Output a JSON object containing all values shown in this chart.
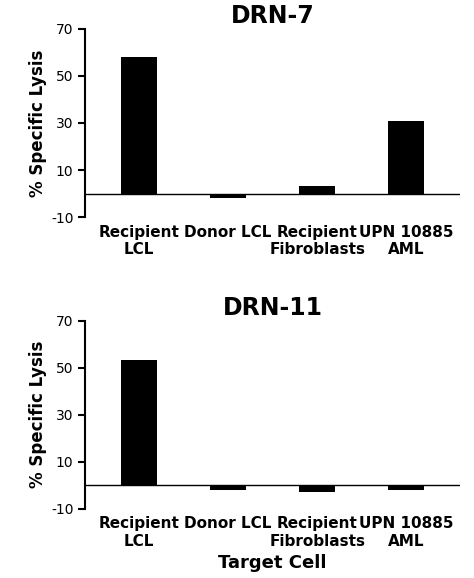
{
  "panels": [
    {
      "title": "DRN-7",
      "categories": [
        "Recipient\nLCL",
        "Donor LCL",
        "Recipient\nFibroblasts",
        "UPN 10885\nAML"
      ],
      "values": [
        58,
        -2,
        3,
        31
      ],
      "ylim": [
        -10,
        70
      ],
      "yticks": [
        -10,
        10,
        30,
        50,
        70
      ],
      "ytick_labels": [
        "-10",
        "10",
        "30",
        "50",
        "70"
      ]
    },
    {
      "title": "DRN-11",
      "categories": [
        "Recipient\nLCL",
        "Donor LCL",
        "Recipient\nFibroblasts",
        "UPN 10885\nAML"
      ],
      "values": [
        53,
        -2,
        -3,
        -2
      ],
      "ylim": [
        -10,
        70
      ],
      "yticks": [
        -10,
        10,
        30,
        50,
        70
      ],
      "ytick_labels": [
        "-10",
        "10",
        "30",
        "50",
        "70"
      ]
    }
  ],
  "ylabel": "% Specific Lysis",
  "xlabel": "Target Cell",
  "bar_color": "#000000",
  "bar_width": 0.4,
  "background_color": "#ffffff",
  "title_fontsize": 17,
  "ylabel_fontsize": 12,
  "tick_fontsize": 11,
  "xlabel_fontsize": 13
}
